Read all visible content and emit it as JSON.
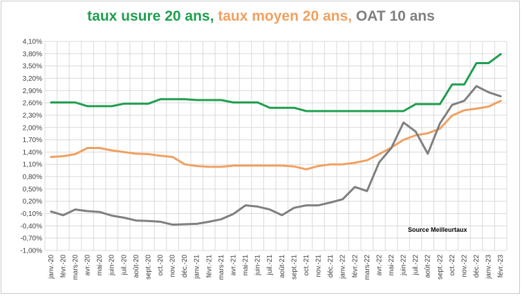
{
  "chart_data": {
    "type": "line",
    "title_parts": [
      {
        "text": "taux usure 20 ans,",
        "color": "#1f9e4f"
      },
      {
        "text": " taux moyen 20 ans,",
        "color": "#f0a060"
      },
      {
        "text": " OAT 10 ans",
        "color": "#7f7f7f"
      }
    ],
    "source_note": "Source Meilleurtaux",
    "x": [
      "janv.-20",
      "févr.-20",
      "mars-20",
      "avr.-20",
      "mai-20",
      "juin-20",
      "juil.-20",
      "août-20",
      "sept.-20",
      "oct.-20",
      "nov.-20",
      "déc.-20",
      "janv.-21",
      "févr.-21",
      "mars-21",
      "avr.-21",
      "mai-21",
      "juin-21",
      "juil.-21",
      "août-21",
      "sept.-21",
      "oct.-21",
      "nov.-21",
      "déc.-21",
      "janv.-22",
      "févr.-22",
      "mars-22",
      "avr.-22",
      "mai-22",
      "juin-22",
      "juil.-22",
      "août-22",
      "sept.-22",
      "oct.-22",
      "nov.-22",
      "déc.-22",
      "janv.-23",
      "févr.-23"
    ],
    "x_tick_labels": [
      "janv.-20",
      "févr.-20",
      "mars-20",
      "avr.-20",
      "mai-20",
      "juin-20",
      "juil.-20",
      "août-20",
      "sept.-20",
      "oct.-20",
      "nov.-20",
      "déc.-20",
      "janv.-21",
      "févr.-21",
      "mars-21",
      "avr.-21",
      "mai-21",
      "juin-21",
      "juil.-21",
      "août-21",
      "sept.-21",
      "oct.-21",
      "nov.-21",
      "déc.-21",
      "janv.-22",
      "févr.-22",
      "mars-22",
      "avr.-22",
      "mai-22",
      "juin-22",
      "juil.-22",
      "août-22",
      "sept.-22",
      "oct.-22",
      "nov.-22",
      "déc.-22",
      "janv.-23",
      "févr.-23"
    ],
    "y_tick_labels": [
      "4,10%",
      "3,80%",
      "3,50%",
      "3,20%",
      "2,90%",
      "2,60%",
      "2,30%",
      "2,00%",
      "1,70%",
      "1,40%",
      "1,10%",
      "0,80%",
      "0,50%",
      "0,20%",
      "-0,10%",
      "-0,40%",
      "-0,70%",
      "-1,00%"
    ],
    "ylim": [
      -1.0,
      4.1
    ],
    "grid": true,
    "series": [
      {
        "color": "#1f9e4f",
        "values": [
          2.61,
          2.61,
          2.61,
          2.52,
          2.52,
          2.52,
          2.58,
          2.58,
          2.58,
          2.69,
          2.69,
          2.69,
          2.67,
          2.67,
          2.67,
          2.61,
          2.61,
          2.61,
          2.48,
          2.48,
          2.48,
          2.4,
          2.4,
          2.4,
          2.4,
          2.4,
          2.4,
          2.4,
          2.4,
          2.4,
          2.57,
          2.57,
          2.57,
          3.05,
          3.05,
          3.57,
          3.57,
          3.79
        ]
      },
      {
        "color": "#f0a060",
        "values": [
          1.28,
          1.3,
          1.35,
          1.5,
          1.5,
          1.44,
          1.4,
          1.36,
          1.35,
          1.31,
          1.28,
          1.1,
          1.06,
          1.04,
          1.04,
          1.07,
          1.07,
          1.07,
          1.07,
          1.07,
          1.05,
          0.98,
          1.06,
          1.1,
          1.1,
          1.14,
          1.2,
          1.35,
          1.51,
          1.7,
          1.81,
          1.86,
          1.97,
          2.29,
          2.42,
          2.46,
          2.51,
          2.65
        ]
      },
      {
        "color": "#7f7f7f",
        "values": [
          -0.05,
          -0.14,
          0.0,
          -0.04,
          -0.06,
          -0.15,
          -0.2,
          -0.27,
          -0.28,
          -0.3,
          -0.37,
          -0.36,
          -0.35,
          -0.3,
          -0.24,
          -0.11,
          0.1,
          0.07,
          0.0,
          -0.14,
          0.04,
          0.1,
          0.1,
          0.17,
          0.25,
          0.55,
          0.45,
          1.15,
          1.5,
          2.12,
          1.9,
          1.36,
          2.1,
          2.55,
          2.65,
          3.01,
          2.86,
          2.76
        ]
      }
    ]
  }
}
